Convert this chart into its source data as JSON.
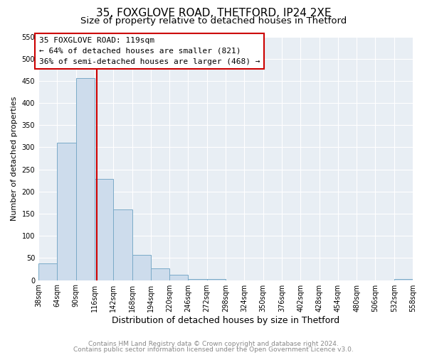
{
  "title": "35, FOXGLOVE ROAD, THETFORD, IP24 2XE",
  "subtitle": "Size of property relative to detached houses in Thetford",
  "xlabel": "Distribution of detached houses by size in Thetford",
  "ylabel": "Number of detached properties",
  "bin_edges": [
    38,
    64,
    90,
    116,
    142,
    168,
    194,
    220,
    246,
    272,
    298,
    324,
    350,
    376,
    402,
    428,
    454,
    480,
    506,
    532,
    558
  ],
  "counts": [
    38,
    310,
    457,
    228,
    159,
    57,
    26,
    12,
    3,
    3,
    0,
    0,
    0,
    0,
    0,
    0,
    0,
    0,
    0,
    3
  ],
  "vline_x": 119,
  "annotation_title": "35 FOXGLOVE ROAD: 119sqm",
  "annotation_line1": "← 64% of detached houses are smaller (821)",
  "annotation_line2": "36% of semi-detached houses are larger (468) →",
  "bar_color": "#cddcec",
  "bar_edge_color": "#7aaac8",
  "vline_color": "#cc0000",
  "annotation_box_edge_color": "#cc0000",
  "bg_color": "#e8eef4",
  "grid_color": "#ffffff",
  "ylim": [
    0,
    550
  ],
  "yticks": [
    0,
    50,
    100,
    150,
    200,
    250,
    300,
    350,
    400,
    450,
    500,
    550
  ],
  "footer1": "Contains HM Land Registry data © Crown copyright and database right 2024.",
  "footer2": "Contains public sector information licensed under the Open Government Licence v3.0.",
  "title_fontsize": 11,
  "subtitle_fontsize": 9.5,
  "xlabel_fontsize": 9,
  "ylabel_fontsize": 8,
  "tick_fontsize": 7,
  "annotation_fontsize": 8,
  "footer_fontsize": 6.5
}
